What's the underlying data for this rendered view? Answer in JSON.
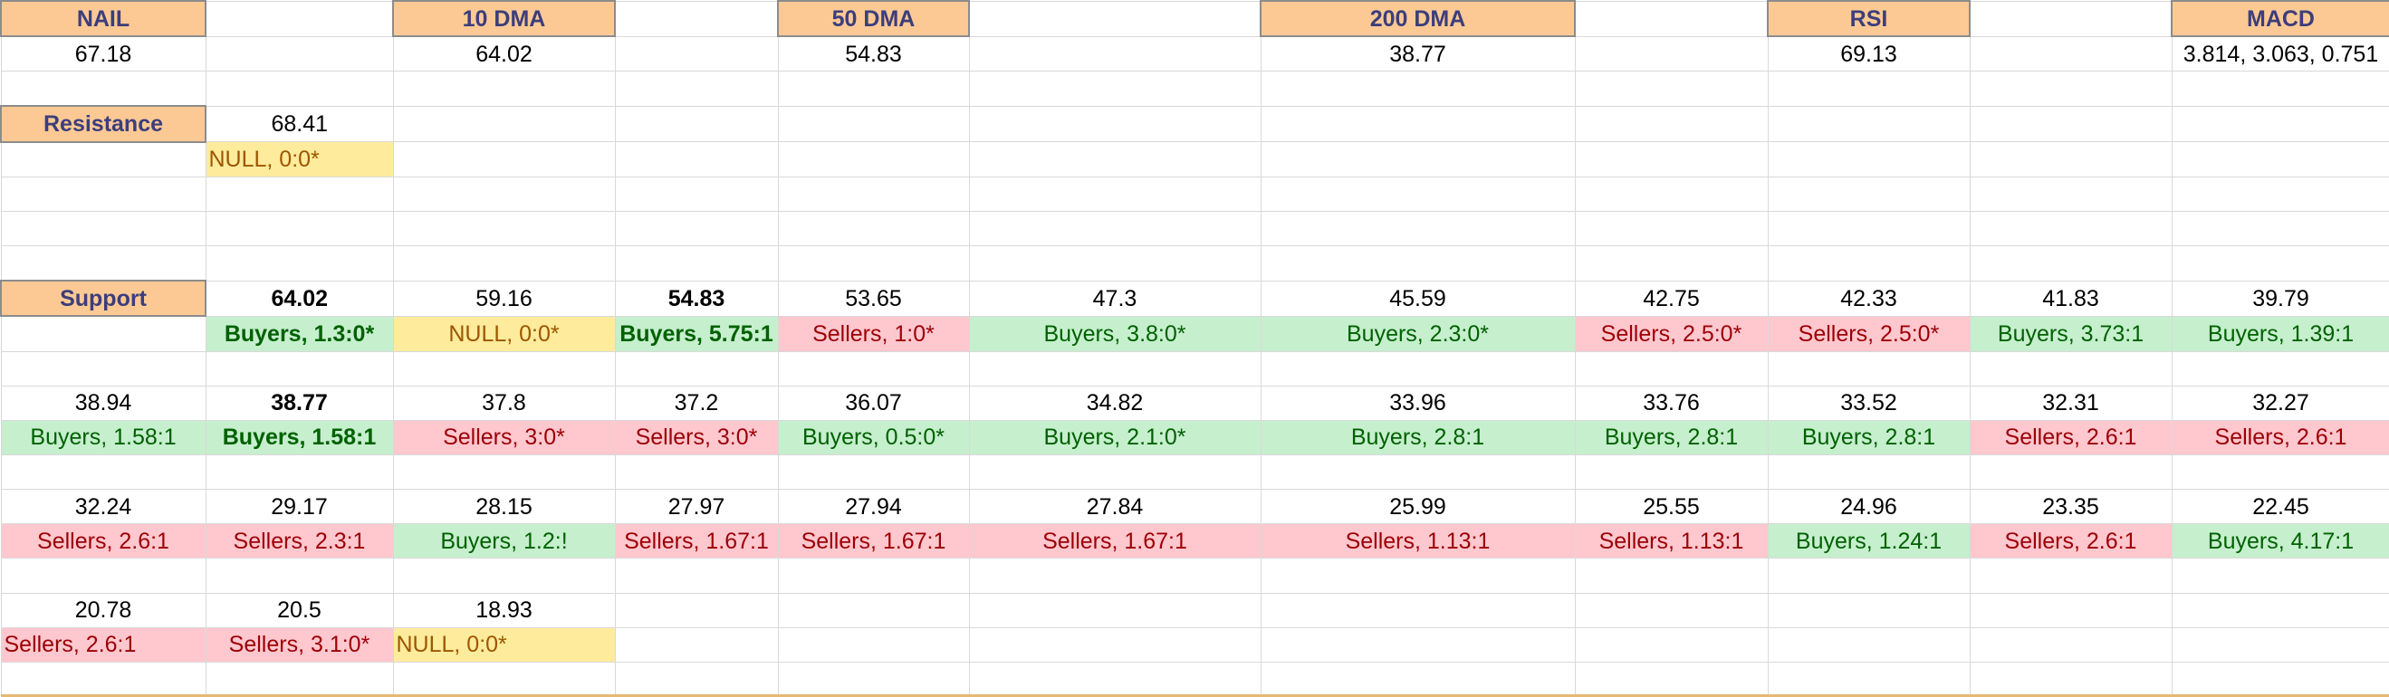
{
  "header": {
    "ticker": "NAIL",
    "ma10_label": "10 DMA",
    "ma50_label": "50 DMA",
    "ma200_label": "200 DMA",
    "rsi_label": "RSI",
    "macd_label": "MACD"
  },
  "values": {
    "price": "67.18",
    "ma10": "64.02",
    "ma50": "54.83",
    "ma200": "38.77",
    "rsi": "69.13",
    "macd": "3.814, 3.063, 0.751"
  },
  "resistance": {
    "label": "Resistance",
    "level": "68.41",
    "ratio": "NULL, 0:0*"
  },
  "support": {
    "label": "Support",
    "rows": [
      {
        "levels": [
          "64.02",
          "59.16",
          "54.83",
          "53.65",
          "47.3",
          "45.59",
          "42.75",
          "42.33",
          "41.83",
          "39.79"
        ],
        "ratios": [
          "Buyers, 1.3:0*",
          "NULL, 0:0*",
          "Buyers, 5.75:1",
          "Sellers, 1:0*",
          "Buyers, 3.8:0*",
          "Buyers, 2.3:0*",
          "Sellers, 2.5:0*",
          "Sellers, 2.5:0*",
          "Buyers, 3.73:1",
          "Buyers, 1.39:1"
        ]
      },
      {
        "levels": [
          "38.94",
          "38.77",
          "37.8",
          "37.2",
          "36.07",
          "34.82",
          "33.96",
          "33.76",
          "33.52",
          "32.31",
          "32.27"
        ],
        "ratios": [
          "Buyers, 1.58:1",
          "Buyers, 1.58:1",
          "Sellers, 3:0*",
          "Sellers, 3:0*",
          "Buyers, 0.5:0*",
          "Buyers, 2.1:0*",
          "Buyers, 2.8:1",
          "Buyers, 2.8:1",
          "Buyers, 2.8:1",
          "Sellers, 2.6:1",
          "Sellers, 2.6:1"
        ]
      },
      {
        "levels": [
          "32.24",
          "29.17",
          "28.15",
          "27.97",
          "27.94",
          "27.84",
          "25.99",
          "25.55",
          "24.96",
          "23.35",
          "22.45"
        ],
        "ratios": [
          "Sellers, 2.6:1",
          "Sellers, 2.3:1",
          "Buyers, 1.2:!",
          "Sellers, 1.67:1",
          "Sellers, 1.67:1",
          "Sellers, 1.67:1",
          "Sellers, 1.13:1",
          "Sellers, 1.13:1",
          "Buyers, 1.24:1",
          "Sellers, 2.6:1",
          "Buyers, 4.17:1"
        ]
      },
      {
        "levels": [
          "20.78",
          "20.5",
          "18.93"
        ],
        "ratios": [
          "Sellers, 2.6:1",
          "Sellers, 3.1:0*",
          "NULL, 0:0*"
        ]
      }
    ]
  },
  "colors": {
    "header_fill": "#fcc994",
    "header_text": "#3c3e7c",
    "buyers_fill": "#c6efce",
    "buyers_text": "#006100",
    "sellers_fill": "#ffc7ce",
    "sellers_text": "#9c0006",
    "null_fill": "#ffeb9c",
    "null_text": "#9c5700"
  }
}
